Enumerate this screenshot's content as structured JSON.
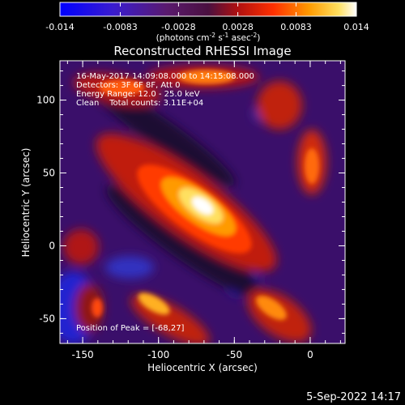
{
  "colorbar": {
    "ticks": [
      "-0.014",
      "-0.0083",
      "-0.0028",
      "0.0028",
      "0.0083",
      "0.014"
    ],
    "tick_values": [
      -0.014,
      -0.0083,
      -0.0028,
      0.0028,
      0.0083,
      0.014
    ],
    "units_prefix": "(photons cm",
    "units_exp1": "-2",
    "units_mid1": " s",
    "units_exp2": "-1",
    "units_mid2": " asec",
    "units_exp3": "-2",
    "units_suffix": ")"
  },
  "image": {
    "title": "Reconstructed RHESSI Image",
    "info_lines": [
      "16-May-2017 14:09:08.000 to 14:15:08.000",
      "Detectors: 3F 6F 8F, Att 0",
      "Energy Range: 12.0 - 25.0 keV",
      "Clean    Total counts: 3.11E+04"
    ],
    "peak_label": "Position of Peak = [-68,27]",
    "peak": [
      -68,
      27
    ]
  },
  "axes": {
    "xlabel": "Heliocentric X (arcsec)",
    "ylabel": "Heliocentric Y (arcsec)",
    "xlim": [
      -165,
      23
    ],
    "ylim": [
      -67,
      127
    ],
    "xticks": [
      {
        "label": "-150",
        "value": -150
      },
      {
        "label": "-100",
        "value": -100
      },
      {
        "label": "-50",
        "value": -50
      },
      {
        "label": "0",
        "value": 0
      }
    ],
    "yticks": [
      {
        "label": "-50",
        "value": -50
      },
      {
        "label": "0",
        "value": 0
      },
      {
        "label": "50",
        "value": 50
      },
      {
        "label": "100",
        "value": 100
      }
    ]
  },
  "footer": {
    "date": "5-Sep-2022 14:17"
  }
}
